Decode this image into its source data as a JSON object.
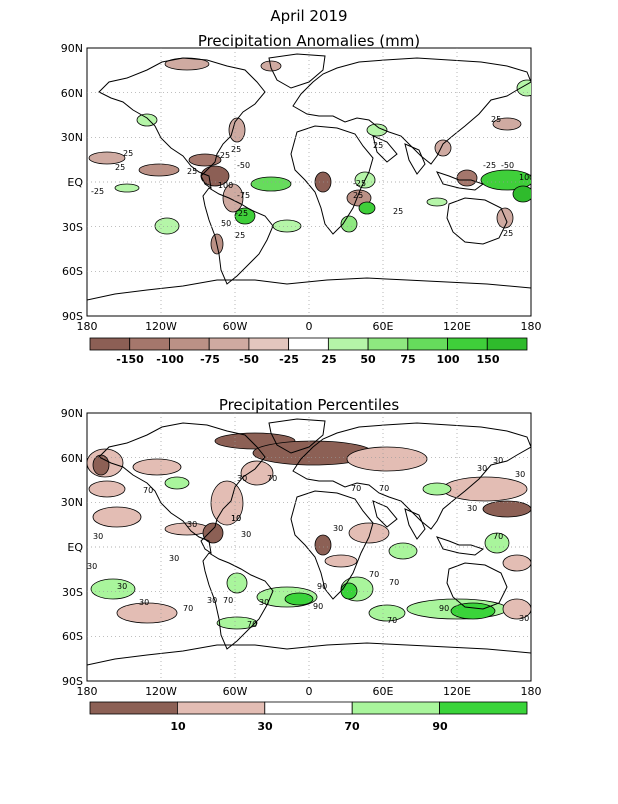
{
  "main_title": "April 2019",
  "panels": [
    {
      "title": "Precipitation Anomalies (mm)",
      "lat_labels": [
        "90N",
        "60N",
        "30N",
        "EQ",
        "30S",
        "60S",
        "90S"
      ],
      "lon_labels": [
        "180",
        "120W",
        "60W",
        "0",
        "60E",
        "120E",
        "180"
      ],
      "colorbar": {
        "labels": [
          "-150",
          "-100",
          "-75",
          "-50",
          "-25",
          "25",
          "50",
          "75",
          "100",
          "150"
        ],
        "colors": [
          "#8c5f55",
          "#a5776c",
          "#bb9186",
          "#cfaaa1",
          "#e3c6be",
          "#ffffff",
          "#b5f5a8",
          "#8ee880",
          "#66dc5c",
          "#3fcf3a",
          "#2fbb2c"
        ]
      },
      "contour_labels": [
        "25",
        "-25",
        "-50",
        "-25",
        "25",
        "25",
        "-100",
        "-75",
        "25",
        "50",
        "25",
        "25",
        "-50",
        "-25",
        "25",
        "100",
        "25",
        "25",
        "-25",
        "25",
        "-25"
      ]
    },
    {
      "title": "Precipitation Percentiles",
      "lat_labels": [
        "90N",
        "60N",
        "30N",
        "EQ",
        "30S",
        "60S",
        "90S"
      ],
      "lon_labels": [
        "180",
        "120W",
        "60W",
        "0",
        "60E",
        "120E",
        "180"
      ],
      "colorbar": {
        "labels": [
          "10",
          "30",
          "70",
          "90"
        ],
        "colors": [
          "#8c6055",
          "#e3bdb4",
          "#ffffff",
          "#a9f59c",
          "#3ad43a"
        ]
      },
      "contour_labels": [
        "30",
        "70",
        "30",
        "10",
        "30",
        "30",
        "30",
        "30",
        "70",
        "70",
        "30",
        "70",
        "30",
        "30",
        "30",
        "70",
        "90",
        "70",
        "90",
        "30",
        "70",
        "10",
        "30",
        "30",
        "70",
        "70",
        "30",
        "70",
        "90",
        "30",
        "70",
        "30"
      ]
    }
  ]
}
